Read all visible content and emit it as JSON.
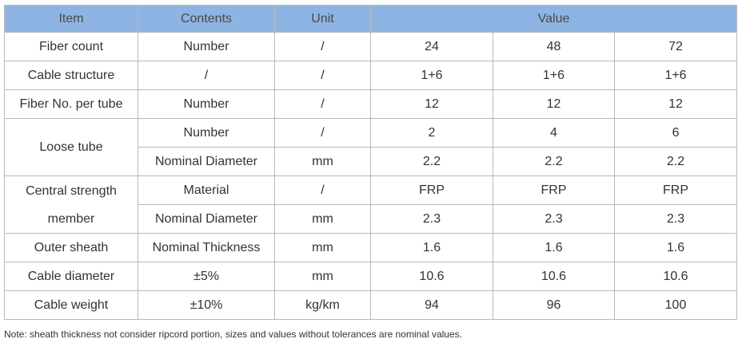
{
  "header": {
    "item": "Item",
    "contents": "Contents",
    "unit": "Unit",
    "value": "Value"
  },
  "rows": {
    "fiber_count": {
      "item": "Fiber count",
      "contents": "Number",
      "unit": "/",
      "values": [
        "24",
        "48",
        "72"
      ]
    },
    "cable_structure": {
      "item": "Cable structure",
      "contents": "/",
      "unit": "/",
      "values": [
        "1+6",
        "1+6",
        "1+6"
      ]
    },
    "fiber_per_tube": {
      "item": "Fiber No. per tube",
      "contents": "Number",
      "unit": "/",
      "values": [
        "12",
        "12",
        "12"
      ]
    },
    "loose_tube": {
      "item": "Loose tube",
      "number": {
        "contents": "Number",
        "unit": "/",
        "values": [
          "2",
          "4",
          "6"
        ]
      },
      "diameter": {
        "contents": "Nominal Diameter",
        "unit": "mm",
        "values": [
          "2.2",
          "2.2",
          "2.2"
        ]
      }
    },
    "central_strength": {
      "item": "Central strength member",
      "material": {
        "contents": "Material",
        "unit": "/",
        "values": [
          "FRP",
          "FRP",
          "FRP"
        ]
      },
      "diameter": {
        "contents": "Nominal Diameter",
        "unit": "mm",
        "values": [
          "2.3",
          "2.3",
          "2.3"
        ]
      }
    },
    "outer_sheath": {
      "item": "Outer sheath",
      "contents": "Nominal Thickness",
      "unit": "mm",
      "values": [
        "1.6",
        "1.6",
        "1.6"
      ]
    },
    "cable_diameter": {
      "item": "Cable diameter",
      "contents": "±5%",
      "unit": "mm",
      "values": [
        "10.6",
        "10.6",
        "10.6"
      ]
    },
    "cable_weight": {
      "item": "Cable weight",
      "contents": "±10%",
      "unit": "kg/km",
      "values": [
        "94",
        "96",
        "100"
      ]
    }
  },
  "note": "Note: sheath thickness not consider ripcord portion, sizes and values without tolerances are nominal values."
}
